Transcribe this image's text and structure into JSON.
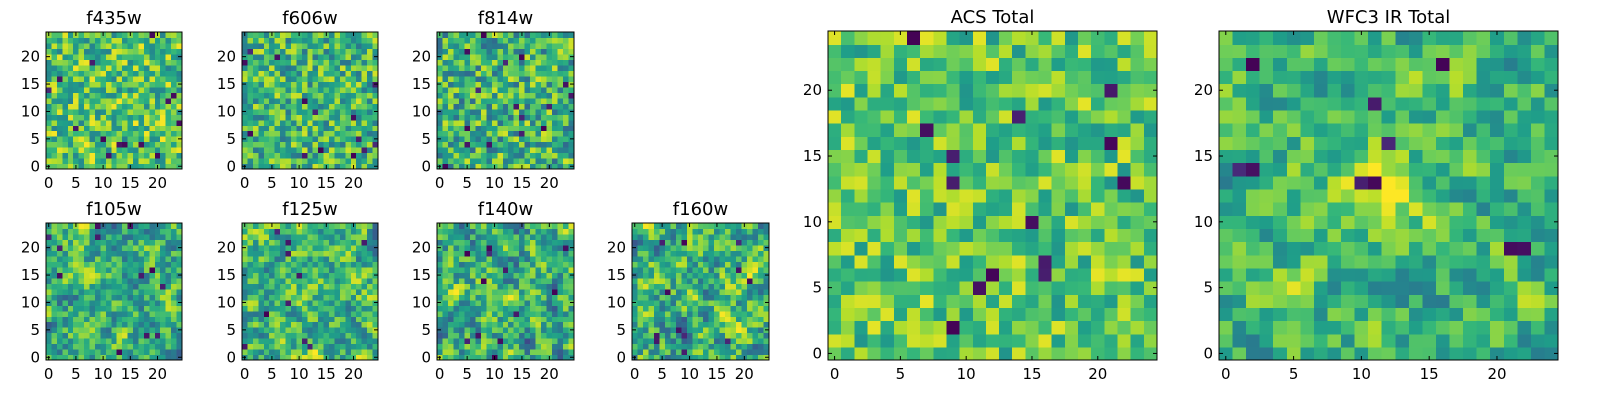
{
  "colormap": "viridis",
  "colors": {
    "low": "#440154",
    "mid": "#21918c",
    "high": "#fde725",
    "frame": "#000000",
    "background": "#ffffff"
  },
  "chart_data": [
    {
      "type": "heatmap",
      "title": "f435w",
      "grid_size": 25,
      "xlim": [
        -0.5,
        24.5
      ],
      "ylim": [
        -0.5,
        24.5
      ],
      "xticks": [
        0,
        5,
        10,
        15,
        20
      ],
      "yticks": [
        0,
        5,
        10,
        15,
        20
      ],
      "grid": false,
      "legend": "none",
      "seed": 11,
      "noise": 0.55,
      "mean": 0.72,
      "blobs": [],
      "dark_count": 14
    },
    {
      "type": "heatmap",
      "title": "f606w",
      "grid_size": 25,
      "xlim": [
        -0.5,
        24.5
      ],
      "ylim": [
        -0.5,
        24.5
      ],
      "xticks": [
        0,
        5,
        10,
        15,
        20
      ],
      "yticks": [
        0,
        5,
        10,
        15,
        20
      ],
      "grid": false,
      "legend": "none",
      "seed": 23,
      "noise": 0.55,
      "mean": 0.66,
      "blobs": [],
      "dark_count": 14
    },
    {
      "type": "heatmap",
      "title": "f814w",
      "grid_size": 25,
      "xlim": [
        -0.5,
        24.5
      ],
      "ylim": [
        -0.5,
        24.5
      ],
      "xticks": [
        0,
        5,
        10,
        15,
        20
      ],
      "yticks": [
        0,
        5,
        10,
        15,
        20
      ],
      "grid": false,
      "legend": "none",
      "seed": 37,
      "noise": 0.6,
      "mean": 0.64,
      "blobs": [],
      "dark_count": 16
    },
    {
      "type": "heatmap",
      "title": "f105w",
      "grid_size": 25,
      "xlim": [
        -0.5,
        24.5
      ],
      "ylim": [
        -0.5,
        24.5
      ],
      "xticks": [
        0,
        5,
        10,
        15,
        20
      ],
      "yticks": [
        0,
        5,
        10,
        15,
        20
      ],
      "grid": false,
      "legend": "none",
      "seed": 41,
      "noise": 0.5,
      "mean": 0.62,
      "blobs": [],
      "dark_count": 12,
      "smooth": true
    },
    {
      "type": "heatmap",
      "title": "f125w",
      "grid_size": 25,
      "xlim": [
        -0.5,
        24.5
      ],
      "ylim": [
        -0.5,
        24.5
      ],
      "xticks": [
        0,
        5,
        10,
        15,
        20
      ],
      "yticks": [
        0,
        5,
        10,
        15,
        20
      ],
      "grid": false,
      "legend": "none",
      "seed": 53,
      "noise": 0.5,
      "mean": 0.66,
      "blobs": [],
      "dark_count": 10,
      "smooth": true
    },
    {
      "type": "heatmap",
      "title": "f140w",
      "grid_size": 25,
      "xlim": [
        -0.5,
        24.5
      ],
      "ylim": [
        -0.5,
        24.5
      ],
      "xticks": [
        0,
        5,
        10,
        15,
        20
      ],
      "yticks": [
        0,
        5,
        10,
        15,
        20
      ],
      "grid": false,
      "legend": "none",
      "seed": 67,
      "noise": 0.55,
      "mean": 0.62,
      "blobs": [],
      "dark_count": 12,
      "smooth": true
    },
    {
      "type": "heatmap",
      "title": "f160w",
      "grid_size": 25,
      "xlim": [
        -0.5,
        24.5
      ],
      "ylim": [
        -0.5,
        24.5
      ],
      "xticks": [
        0,
        5,
        10,
        15,
        20
      ],
      "yticks": [
        0,
        5,
        10,
        15,
        20
      ],
      "grid": false,
      "legend": "none",
      "seed": 79,
      "noise": 0.55,
      "mean": 0.64,
      "blobs": [],
      "dark_count": 12,
      "smooth": true
    },
    {
      "type": "heatmap",
      "title": "ACS Total",
      "grid_size": 25,
      "xlim": [
        -0.5,
        24.5
      ],
      "ylim": [
        -0.5,
        24.5
      ],
      "xticks": [
        0,
        5,
        10,
        15,
        20
      ],
      "yticks": [
        0,
        5,
        10,
        15,
        20
      ],
      "grid": false,
      "legend": "none",
      "seed": 97,
      "noise": 0.45,
      "mean": 0.74,
      "blobs": [],
      "dark_count": 14
    },
    {
      "type": "heatmap",
      "title": "WFC3 IR Total",
      "grid_size": 25,
      "xlim": [
        -0.5,
        24.5
      ],
      "ylim": [
        -0.5,
        24.5
      ],
      "xticks": [
        0,
        5,
        10,
        15,
        20
      ],
      "yticks": [
        0,
        5,
        10,
        15,
        20
      ],
      "grid": false,
      "legend": "none",
      "seed": 131,
      "noise": 0.42,
      "mean": 0.66,
      "blobs": [
        [
          11,
          12,
          0.45,
          2.0
        ]
      ],
      "dark_count": 10,
      "smooth": true
    }
  ]
}
